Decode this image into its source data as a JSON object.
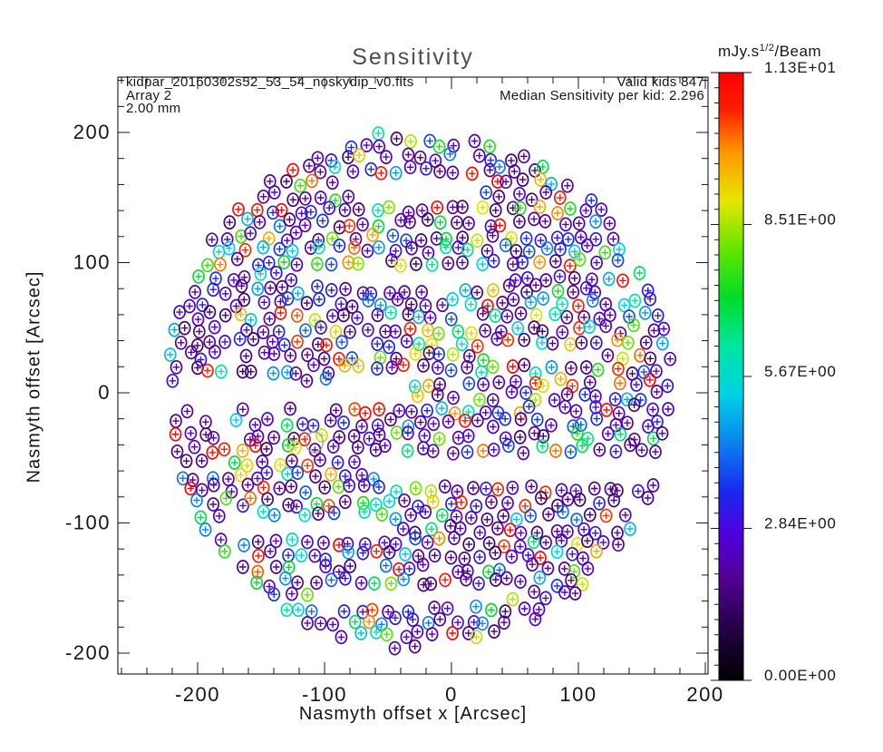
{
  "annotations": {
    "file": "kidpar_20160302s52_53_54_noskydip_v0.fits",
    "array": "Array 2",
    "wavelength": "2.00 mm",
    "valid_kids": "Valid kids 847",
    "median": "Median Sensitivity per kid: 2.296"
  },
  "chart_data": {
    "type": "scatter",
    "title": "Sensitivity",
    "xlabel": "Nasmyth offset x [Arcsec]",
    "ylabel": "Nasmyth offset [Arcsec]",
    "xlim": [
      -263,
      202
    ],
    "ylim": [
      -216,
      242
    ],
    "x_ticks": [
      -200,
      -100,
      0,
      100,
      200
    ],
    "y_ticks": [
      -200,
      -100,
      0,
      100,
      200
    ],
    "minor_tick_interval": 20,
    "grid": false,
    "legend": "none",
    "valid_kids": 847,
    "median_sensitivity_per_kid": 2.296,
    "array_number": 2,
    "wavelength_mm": 2.0,
    "colorbar": {
      "title_prefix": "mJy.s",
      "title_sup": "1/2",
      "title_suffix": "/Beam",
      "labels": [
        "1.13E+01",
        "8.51E+00",
        "5.67E+00",
        "2.84E+00",
        "0.00E+00"
      ],
      "vmin": 0.0,
      "vmax": 11.3,
      "position": "right",
      "stops": [
        [
          0.0,
          "#000000"
        ],
        [
          0.09,
          "#26004a"
        ],
        [
          0.17,
          "#540096"
        ],
        [
          0.24,
          "#5000dc"
        ],
        [
          0.31,
          "#1828f0"
        ],
        [
          0.4,
          "#0a8cf0"
        ],
        [
          0.47,
          "#00d2e6"
        ],
        [
          0.55,
          "#00e6a0"
        ],
        [
          0.63,
          "#00dc28"
        ],
        [
          0.71,
          "#64e600"
        ],
        [
          0.79,
          "#e6e600"
        ],
        [
          0.87,
          "#ff9600"
        ],
        [
          0.94,
          "#fa1e00"
        ],
        [
          1.0,
          "#ff0000"
        ]
      ]
    },
    "marker_generation": {
      "note": "847 valid KID detectors drawn as circled crosses colored by sensitivity; positions approximated by a jittered hex grid filling the circular field of view with dead-line gaps",
      "seed": 20160302,
      "grid_spacing": 11.8,
      "jitter": 3.4,
      "dropout": 0.045,
      "field_center": [
        -26,
        2
      ],
      "field_radius": 200,
      "gaps": [
        [
          -120,
          44,
          82,
          97
        ],
        [
          -238,
          -34,
          -12,
          9
        ],
        [
          -56,
          176,
          -68,
          -50
        ],
        [
          -191,
          -49,
          -111,
          -95
        ],
        [
          -77,
          23,
          145,
          163
        ],
        [
          30,
          116,
          23,
          34
        ],
        [
          -106,
          44,
          -162,
          -148
        ]
      ],
      "value_mixture": [
        {
          "w": 0.47,
          "min": 1.5,
          "max": 2.7
        },
        {
          "w": 0.16,
          "min": 2.7,
          "max": 3.9
        },
        {
          "w": 0.1,
          "min": 3.9,
          "max": 5.4
        },
        {
          "w": 0.1,
          "min": 5.4,
          "max": 7.3
        },
        {
          "w": 0.05,
          "min": 7.3,
          "max": 9.0
        },
        {
          "w": 0.05,
          "min": 9.0,
          "max": 10.4
        },
        {
          "w": 0.07,
          "min": 10.4,
          "max": 11.3
        }
      ]
    },
    "highlight_marker": {
      "x": -108,
      "y": -38
    }
  }
}
